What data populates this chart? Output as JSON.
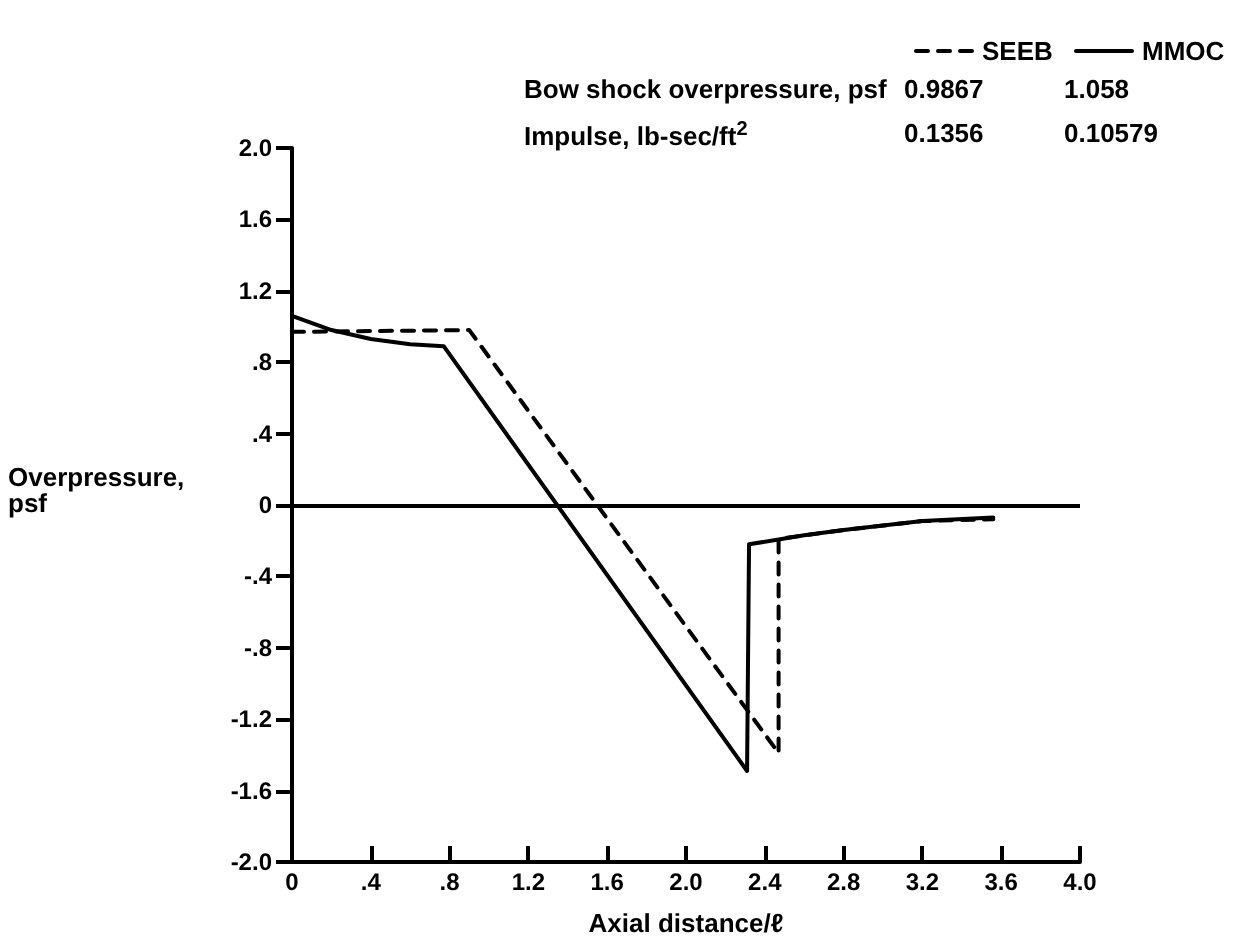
{
  "chart_data": {
    "type": "line",
    "xlabel": "Axial distance/ℓ",
    "ylabel": "Overpressure,\npsf",
    "xlim": [
      0,
      4.0
    ],
    "xticks": [
      0,
      {
        "value": 0.4,
        "label": ".4"
      },
      {
        "value": 0.8,
        "label": ".8"
      },
      1.2,
      1.6,
      {
        "value": 2.0,
        "label": "2.0"
      },
      2.4,
      2.8,
      3.2,
      3.6,
      {
        "value": 4.0,
        "label": "4.0"
      }
    ],
    "ylim": [
      -2.0,
      2.0
    ],
    "yticks": [
      {
        "value": -2.0,
        "label": "-2.0"
      },
      -1.6,
      -1.2,
      {
        "value": -0.8,
        "label": "-.8"
      },
      {
        "value": -0.4,
        "label": "-.4"
      },
      0,
      {
        "value": 0.4,
        "label": ".4"
      },
      {
        "value": 0.8,
        "label": ".8"
      },
      1.2,
      1.6,
      {
        "value": 2.0,
        "label": "2.0"
      }
    ],
    "series": [
      {
        "name": "SEEB",
        "color": "#000000",
        "line_style": "dashed",
        "x": [
          0,
          0.9,
          2.47,
          2.47,
          2.8,
          3.2,
          3.56
        ],
        "values": [
          0.97,
          0.98,
          -1.39,
          -0.19,
          -0.14,
          -0.09,
          -0.08
        ]
      },
      {
        "name": "MMOC",
        "color": "#000000",
        "line_style": "solid",
        "x": [
          0,
          0.2,
          0.4,
          0.6,
          0.77,
          2.31,
          2.32,
          2.6,
          2.8,
          3.2,
          3.56
        ],
        "values": [
          1.06,
          0.98,
          0.93,
          0.9,
          0.89,
          -1.49,
          -0.22,
          -0.17,
          -0.14,
          -0.09,
          -0.07
        ]
      }
    ],
    "annotations": [
      "Bow shock overpressure, psf",
      "0.9867",
      "1.058",
      "Impulse, lb-sec/ft$^{2}$",
      "0.1356",
      "0.10579"
    ],
    "ref_lines": [
      {
        "axis": "y",
        "value": 0,
        "color": "#000000"
      }
    ],
    "grid": false,
    "legend": "top right",
    "marker": "none"
  }
}
